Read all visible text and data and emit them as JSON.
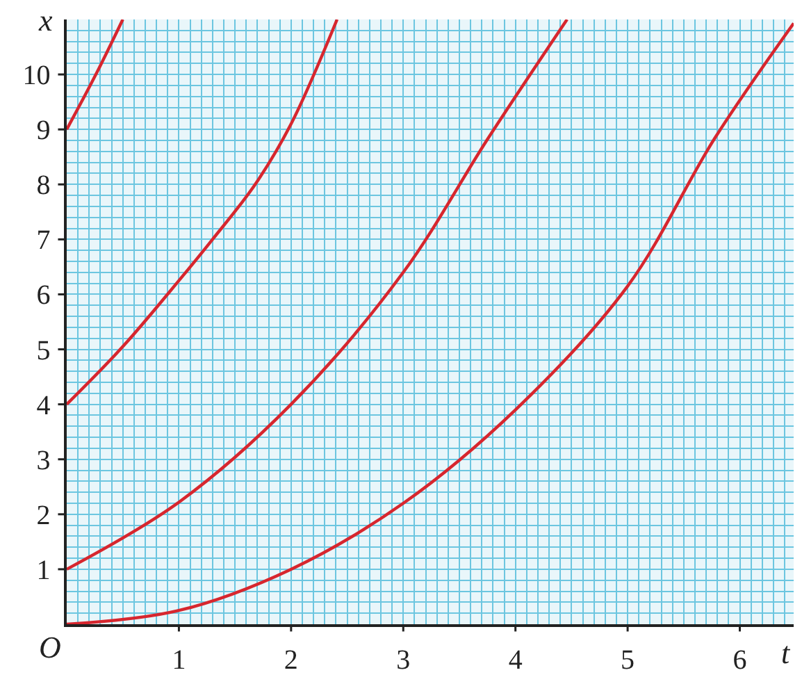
{
  "chart_data": {
    "type": "line",
    "xlabel": "t",
    "ylabel": "x",
    "annotations": [
      "O"
    ],
    "xlim": [
      0,
      6.48
    ],
    "ylim": [
      0,
      11
    ],
    "xticks": [
      {
        "value": 0.1,
        "label": null
      },
      {
        "value": 0.2,
        "label": null
      },
      {
        "value": 0.3,
        "label": null
      },
      {
        "value": 0.4,
        "label": null
      },
      {
        "value": 0.5,
        "label": null
      },
      {
        "value": 0.6,
        "label": null
      },
      {
        "value": 0.7,
        "label": null
      },
      {
        "value": 0.8,
        "label": null
      },
      {
        "value": 0.9,
        "label": null
      },
      1,
      {
        "value": 1.1,
        "label": null
      },
      {
        "value": 1.2,
        "label": null
      },
      {
        "value": 1.3,
        "label": null
      },
      {
        "value": 1.4,
        "label": null
      },
      {
        "value": 1.5,
        "label": null
      },
      {
        "value": 1.6,
        "label": null
      },
      {
        "value": 1.7,
        "label": null
      },
      {
        "value": 1.8,
        "label": null
      },
      {
        "value": 1.9,
        "label": null
      },
      2,
      {
        "value": 2.1,
        "label": null
      },
      {
        "value": 2.2,
        "label": null
      },
      {
        "value": 2.3,
        "label": null
      },
      {
        "value": 2.4,
        "label": null
      },
      {
        "value": 2.5,
        "label": null
      },
      {
        "value": 2.6,
        "label": null
      },
      {
        "value": 2.7,
        "label": null
      },
      {
        "value": 2.8,
        "label": null
      },
      {
        "value": 2.9,
        "label": null
      },
      3,
      {
        "value": 3.1,
        "label": null
      },
      {
        "value": 3.2,
        "label": null
      },
      {
        "value": 3.3,
        "label": null
      },
      {
        "value": 3.4,
        "label": null
      },
      {
        "value": 3.5,
        "label": null
      },
      {
        "value": 3.6,
        "label": null
      },
      {
        "value": 3.7,
        "label": null
      },
      {
        "value": 3.8,
        "label": null
      },
      {
        "value": 3.9,
        "label": null
      },
      4,
      {
        "value": 4.1,
        "label": null
      },
      {
        "value": 4.2,
        "label": null
      },
      {
        "value": 4.3,
        "label": null
      },
      {
        "value": 4.4,
        "label": null
      },
      {
        "value": 4.5,
        "label": null
      },
      {
        "value": 4.6,
        "label": null
      },
      {
        "value": 4.7,
        "label": null
      },
      {
        "value": 4.8,
        "label": null
      },
      {
        "value": 4.9,
        "label": null
      },
      5,
      {
        "value": 5.1,
        "label": null
      },
      {
        "value": 5.2,
        "label": null
      },
      {
        "value": 5.3,
        "label": null
      },
      {
        "value": 5.4,
        "label": null
      },
      {
        "value": 5.5,
        "label": null
      },
      {
        "value": 5.6,
        "label": null
      },
      {
        "value": 5.7,
        "label": null
      },
      {
        "value": 5.8,
        "label": null
      },
      {
        "value": 5.9,
        "label": null
      },
      6,
      {
        "value": 6.1,
        "label": null
      },
      {
        "value": 6.2,
        "label": null
      },
      {
        "value": 6.3,
        "label": null
      },
      {
        "value": 6.4,
        "label": null
      }
    ],
    "yticks": [
      {
        "value": 0.2,
        "label": null
      },
      {
        "value": 0.4,
        "label": null
      },
      {
        "value": 0.6,
        "label": null
      },
      {
        "value": 0.8,
        "label": null
      },
      1,
      {
        "value": 1.2,
        "label": null
      },
      {
        "value": 1.4,
        "label": null
      },
      {
        "value": 1.6,
        "label": null
      },
      {
        "value": 1.8,
        "label": null
      },
      2,
      {
        "value": 2.2,
        "label": null
      },
      {
        "value": 2.4,
        "label": null
      },
      {
        "value": 2.6,
        "label": null
      },
      {
        "value": 2.8,
        "label": null
      },
      3,
      {
        "value": 3.2,
        "label": null
      },
      {
        "value": 3.4,
        "label": null
      },
      {
        "value": 3.6,
        "label": null
      },
      {
        "value": 3.8,
        "label": null
      },
      4,
      {
        "value": 4.2,
        "label": null
      },
      {
        "value": 4.4,
        "label": null
      },
      {
        "value": 4.6,
        "label": null
      },
      {
        "value": 4.8,
        "label": null
      },
      5,
      {
        "value": 5.2,
        "label": null
      },
      {
        "value": 5.4,
        "label": null
      },
      {
        "value": 5.6,
        "label": null
      },
      {
        "value": 5.8,
        "label": null
      },
      6,
      {
        "value": 6.2,
        "label": null
      },
      {
        "value": 6.4,
        "label": null
      },
      {
        "value": 6.6,
        "label": null
      },
      {
        "value": 6.8,
        "label": null
      },
      7,
      {
        "value": 7.2,
        "label": null
      },
      {
        "value": 7.4,
        "label": null
      },
      {
        "value": 7.6,
        "label": null
      },
      {
        "value": 7.8,
        "label": null
      },
      8,
      {
        "value": 8.2,
        "label": null
      },
      {
        "value": 8.4,
        "label": null
      },
      {
        "value": 8.6,
        "label": null
      },
      {
        "value": 8.8,
        "label": null
      },
      9,
      {
        "value": 9.2,
        "label": null
      },
      {
        "value": 9.4,
        "label": null
      },
      {
        "value": 9.6,
        "label": null
      },
      {
        "value": 9.8,
        "label": null
      },
      10,
      {
        "value": 10.2,
        "label": null
      },
      {
        "value": 10.4,
        "label": null
      },
      {
        "value": 10.6,
        "label": null
      },
      {
        "value": 10.8,
        "label": null
      }
    ],
    "grid": true,
    "marker": "none",
    "line_style": "solid",
    "series": [
      {
        "color": "#d7262e",
        "x": [
          0,
          1,
          2,
          3,
          4,
          5,
          5.78,
          6.48
        ],
        "values": [
          0,
          0.25,
          1,
          2.2,
          3.9,
          6.15,
          8.85,
          10.93
        ]
      },
      {
        "color": "#d7262e",
        "x": [
          0,
          1,
          2,
          3,
          3.76,
          4.46
        ],
        "values": [
          1,
          2.22,
          4,
          6.4,
          8.85,
          11
        ]
      },
      {
        "color": "#d7262e",
        "x": [
          0,
          0.5,
          1,
          1.3,
          1.68,
          2,
          2.41
        ],
        "values": [
          4,
          5.05,
          6.25,
          7,
          8,
          9.1,
          11
        ]
      },
      {
        "color": "#d7262e",
        "x": [
          0,
          0.26,
          0.5
        ],
        "values": [
          9,
          10,
          11
        ]
      }
    ]
  }
}
